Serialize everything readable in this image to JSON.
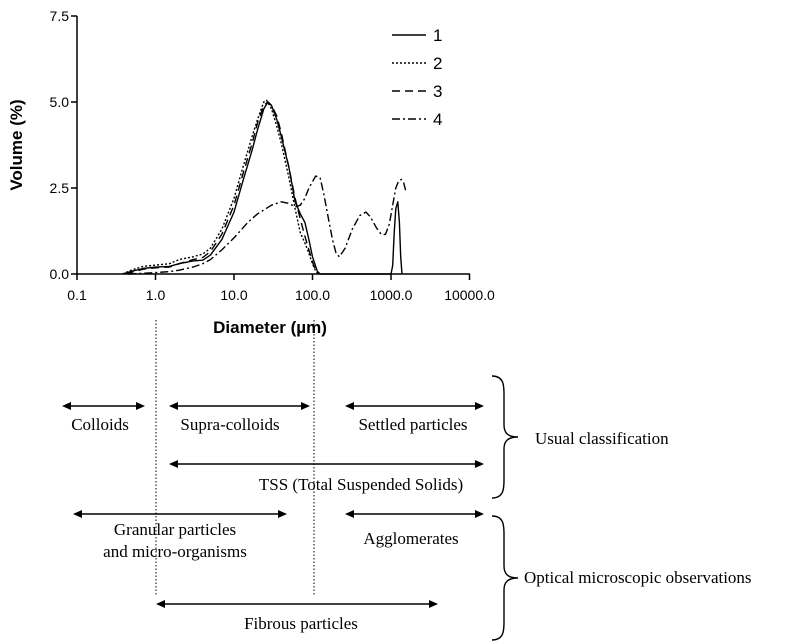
{
  "chart_data": {
    "type": "line",
    "xlabel": "Diameter (µm)",
    "ylabel": "Volume (%)",
    "x_scale": "log",
    "xlim": [
      0.1,
      10000
    ],
    "ylim": [
      0,
      7.5
    ],
    "x_ticks": [
      {
        "value": 0.1,
        "label": "0.1"
      },
      {
        "value": 1,
        "label": "1.0"
      },
      {
        "value": 10,
        "label": "10.0"
      },
      {
        "value": 100,
        "label": "100.0"
      },
      {
        "value": 1000,
        "label": "1000.0"
      },
      {
        "value": 10000,
        "label": "10000.0"
      }
    ],
    "y_ticks": [
      {
        "value": 0,
        "label": "0.0"
      },
      {
        "value": 2.5,
        "label": "2.5"
      },
      {
        "value": 5,
        "label": "5.0"
      },
      {
        "value": 7.5,
        "label": "7.5"
      }
    ],
    "grid": false,
    "legend_position": "top-right",
    "series": [
      {
        "name": "1",
        "line_style": "solid",
        "points": [
          [
            0.38,
            0
          ],
          [
            0.5,
            0.08
          ],
          [
            0.7,
            0.16
          ],
          [
            1,
            0.2
          ],
          [
            1.5,
            0.22
          ],
          [
            2,
            0.3
          ],
          [
            3,
            0.38
          ],
          [
            4,
            0.4
          ],
          [
            5,
            0.55
          ],
          [
            7,
            1.0
          ],
          [
            10,
            1.8
          ],
          [
            13,
            2.7
          ],
          [
            17,
            3.6
          ],
          [
            20,
            4.2
          ],
          [
            24,
            4.8
          ],
          [
            27,
            5.0
          ],
          [
            30,
            4.9
          ],
          [
            35,
            4.5
          ],
          [
            40,
            4.0
          ],
          [
            50,
            3.1
          ],
          [
            60,
            2.1
          ],
          [
            70,
            1.75
          ],
          [
            80,
            1.5
          ],
          [
            90,
            1.0
          ],
          [
            100,
            0.5
          ],
          [
            115,
            0.08
          ],
          [
            125,
            0
          ],
          [
            1000,
            0
          ],
          [
            1050,
            0.25
          ],
          [
            1100,
            1.2
          ],
          [
            1150,
            1.9
          ],
          [
            1220,
            2.1
          ],
          [
            1280,
            1.5
          ],
          [
            1330,
            0.5
          ],
          [
            1380,
            0
          ]
        ]
      },
      {
        "name": "2",
        "line_style": "dotted",
        "points": [
          [
            0.38,
            0
          ],
          [
            0.5,
            0.12
          ],
          [
            0.7,
            0.22
          ],
          [
            1,
            0.26
          ],
          [
            1.5,
            0.3
          ],
          [
            2,
            0.42
          ],
          [
            3,
            0.5
          ],
          [
            4,
            0.58
          ],
          [
            5,
            0.75
          ],
          [
            7,
            1.3
          ],
          [
            10,
            2.2
          ],
          [
            13,
            3.1
          ],
          [
            17,
            4.0
          ],
          [
            20,
            4.5
          ],
          [
            24,
            5.0
          ],
          [
            26,
            5.05
          ],
          [
            30,
            4.8
          ],
          [
            35,
            4.3
          ],
          [
            40,
            3.8
          ],
          [
            50,
            2.8
          ],
          [
            60,
            1.9
          ],
          [
            70,
            1.2
          ],
          [
            80,
            0.9
          ],
          [
            90,
            0.6
          ],
          [
            100,
            0.3
          ],
          [
            110,
            0.08
          ],
          [
            120,
            0
          ]
        ]
      },
      {
        "name": "3",
        "line_style": "dashed",
        "points": [
          [
            0.42,
            0
          ],
          [
            0.55,
            0.08
          ],
          [
            0.7,
            0.14
          ],
          [
            1,
            0.18
          ],
          [
            1.5,
            0.2
          ],
          [
            2,
            0.3
          ],
          [
            3,
            0.42
          ],
          [
            4,
            0.48
          ],
          [
            5,
            0.65
          ],
          [
            7,
            1.15
          ],
          [
            10,
            2.0
          ],
          [
            13,
            2.9
          ],
          [
            17,
            3.8
          ],
          [
            20,
            4.4
          ],
          [
            24,
            4.9
          ],
          [
            27,
            5.0
          ],
          [
            30,
            4.9
          ],
          [
            35,
            4.6
          ],
          [
            40,
            4.1
          ],
          [
            50,
            3.1
          ],
          [
            60,
            2.2
          ],
          [
            70,
            1.6
          ],
          [
            80,
            1.1
          ],
          [
            90,
            0.7
          ],
          [
            100,
            0.35
          ],
          [
            110,
            0.1
          ],
          [
            120,
            0
          ]
        ]
      },
      {
        "name": "4",
        "line_style": "dash-dot",
        "points": [
          [
            0.45,
            0
          ],
          [
            0.7,
            0.02
          ],
          [
            1,
            0.04
          ],
          [
            1.5,
            0.07
          ],
          [
            2,
            0.11
          ],
          [
            3,
            0.2
          ],
          [
            4,
            0.3
          ],
          [
            5,
            0.42
          ],
          [
            7,
            0.7
          ],
          [
            10,
            1.05
          ],
          [
            15,
            1.5
          ],
          [
            20,
            1.75
          ],
          [
            30,
            2.0
          ],
          [
            40,
            2.1
          ],
          [
            50,
            2.05
          ],
          [
            60,
            1.95
          ],
          [
            70,
            2.0
          ],
          [
            80,
            2.2
          ],
          [
            90,
            2.5
          ],
          [
            110,
            2.85
          ],
          [
            125,
            2.8
          ],
          [
            140,
            2.3
          ],
          [
            160,
            1.6
          ],
          [
            180,
            1.0
          ],
          [
            200,
            0.6
          ],
          [
            220,
            0.5
          ],
          [
            260,
            0.75
          ],
          [
            320,
            1.3
          ],
          [
            400,
            1.7
          ],
          [
            480,
            1.8
          ],
          [
            550,
            1.65
          ],
          [
            650,
            1.35
          ],
          [
            750,
            1.15
          ],
          [
            850,
            1.15
          ],
          [
            950,
            1.45
          ],
          [
            1050,
            2.0
          ],
          [
            1150,
            2.5
          ],
          [
            1250,
            2.7
          ],
          [
            1350,
            2.75
          ],
          [
            1450,
            2.65
          ],
          [
            1550,
            2.4
          ]
        ]
      }
    ]
  },
  "classification": {
    "brace_labels": [
      {
        "id": "usual",
        "text": "Usual classification"
      },
      {
        "id": "optical",
        "text": "Optical microscopic observations"
      }
    ],
    "items": [
      {
        "id": "colloids",
        "label_lines": [
          "Colloids"
        ]
      },
      {
        "id": "supra-colloids",
        "label_lines": [
          "Supra-colloids"
        ]
      },
      {
        "id": "settled-particles",
        "label_lines": [
          "Settled particles"
        ]
      },
      {
        "id": "tss",
        "label_lines": [
          "TSS (Total Suspended Solids)"
        ]
      },
      {
        "id": "granular-particles",
        "label_lines": [
          "Granular particles",
          "and micro-organisms"
        ]
      },
      {
        "id": "agglomerates",
        "label_lines": [
          "Agglomerates"
        ]
      },
      {
        "id": "fibrous-particles",
        "label_lines": [
          "Fibrous particles"
        ]
      }
    ]
  }
}
